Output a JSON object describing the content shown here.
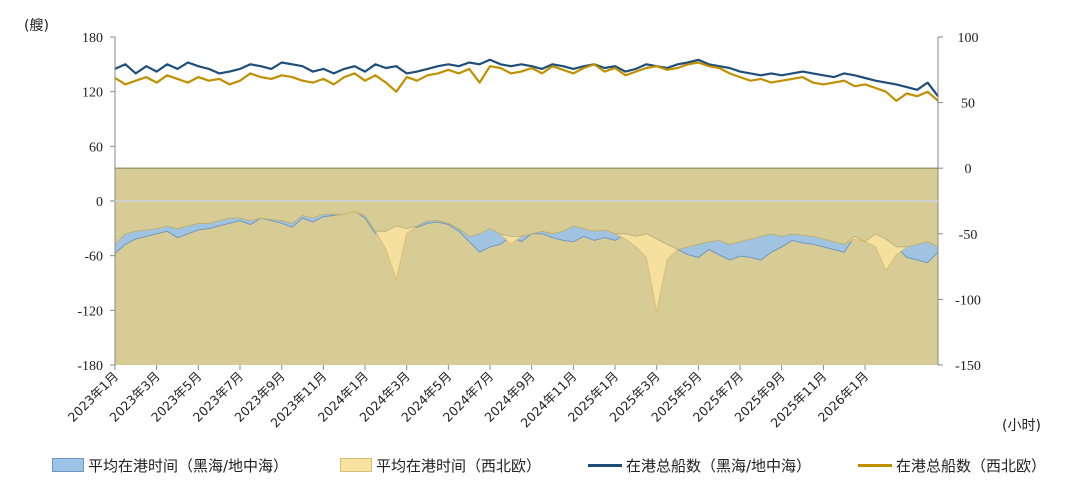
{
  "chart_data": {
    "type": "line+area",
    "left_unit": "(艘)",
    "right_unit": "(小时)",
    "left_axis": {
      "min": -180,
      "max": 180,
      "ticks": [
        "180",
        "120",
        "60",
        "0",
        "-60",
        "-120",
        "-180"
      ]
    },
    "right_axis": {
      "min": -150,
      "max": 100,
      "ticks": [
        "100",
        "50",
        "0",
        "-50",
        "-100",
        "-150"
      ]
    },
    "x_labels": [
      "2023年1月",
      "2023年3月",
      "2023年5月",
      "2023年7月",
      "2023年9月",
      "2023年11月",
      "2024年1月",
      "2024年3月",
      "2024年5月",
      "2024年7月",
      "2024年9月",
      "2024年11月",
      "2025年1月",
      "2025年3月",
      "2025年5月",
      "2025年7月",
      "2025年9月",
      "2025年11月",
      "2026年1月"
    ],
    "months_span": 39.5,
    "series": [
      {
        "name": "平均在港时间（黑海/地中海）",
        "kind": "area",
        "axis": "right",
        "color": "#9dc3e6",
        "stroke": "#6f95c2",
        "x_month": [
          0,
          0.5,
          1,
          1.5,
          2,
          2.5,
          3,
          3.5,
          4,
          4.5,
          5,
          5.5,
          6,
          6.5,
          7,
          7.5,
          8,
          8.5,
          9,
          9.5,
          10,
          10.5,
          11,
          11.5,
          12,
          12.5,
          13,
          13.5,
          14,
          14.5,
          15,
          15.5,
          16,
          16.5,
          17,
          17.5,
          18,
          18.5,
          19,
          19.5,
          20,
          20.5,
          21,
          21.5,
          22,
          22.5,
          23,
          23.5,
          24,
          24.5,
          25,
          25.5,
          26,
          26.5,
          27,
          27.5,
          28,
          28.5,
          29,
          29.5,
          30,
          30.5,
          31,
          31.5,
          32,
          32.5,
          33,
          33.5,
          34,
          34.5,
          35,
          35.5,
          36,
          36.5,
          37,
          37.5,
          38,
          38.5,
          39,
          39.5
        ],
        "values": [
          -65,
          -58,
          -54,
          -52,
          -50,
          -48,
          -53,
          -50,
          -47,
          -46,
          -44,
          -42,
          -40,
          -43,
          -38,
          -40,
          -42,
          -45,
          -38,
          -41,
          -37,
          -36,
          -35,
          -33,
          -38,
          -50,
          -48,
          -44,
          -46,
          -45,
          -42,
          -41,
          -43,
          -48,
          -56,
          -64,
          -60,
          -58,
          -52,
          -56,
          -50,
          -50,
          -53,
          -55,
          -56,
          -52,
          -55,
          -53,
          -55,
          -50,
          -52,
          -50,
          -54,
          -58,
          -62,
          -66,
          -68,
          -62,
          -66,
          -70,
          -67,
          -68,
          -70,
          -64,
          -60,
          -55,
          -57,
          -58,
          -60,
          -62,
          -64,
          -52,
          -56,
          -50,
          -54,
          -60,
          -68,
          -70,
          -72,
          -64
        ]
      },
      {
        "name": "平均在港时间（西北欧）",
        "kind": "area",
        "axis": "right",
        "color": "#f8e2a0",
        "stroke": "#d8be72",
        "x_month": [
          0,
          0.5,
          1,
          1.5,
          2,
          2.5,
          3,
          3.5,
          4,
          4.5,
          5,
          5.5,
          6,
          6.5,
          7,
          7.5,
          8,
          8.5,
          9,
          9.5,
          10,
          10.5,
          11,
          11.5,
          12,
          12.5,
          13,
          13.5,
          14,
          14.5,
          15,
          15.5,
          16,
          16.5,
          17,
          17.5,
          18,
          18.5,
          19,
          19.5,
          20,
          20.5,
          21,
          21.5,
          22,
          22.5,
          23,
          23.5,
          24,
          24.5,
          25,
          25.5,
          26,
          26.5,
          27,
          27.5,
          28,
          28.5,
          29,
          29.5,
          30,
          30.5,
          31,
          31.5,
          32,
          32.5,
          33,
          33.5,
          34,
          34.5,
          35,
          35.5,
          36,
          36.5,
          37,
          37.5,
          38,
          38.5,
          39,
          39.5
        ],
        "values": [
          -58,
          -50,
          -48,
          -47,
          -46,
          -44,
          -46,
          -44,
          -42,
          -42,
          -40,
          -38,
          -38,
          -40,
          -38,
          -39,
          -40,
          -42,
          -36,
          -38,
          -35,
          -35,
          -36,
          -34,
          -36,
          -48,
          -62,
          -85,
          -50,
          -44,
          -40,
          -40,
          -42,
          -46,
          -52,
          -50,
          -46,
          -50,
          -58,
          -52,
          -50,
          -48,
          -50,
          -48,
          -44,
          -46,
          -48,
          -47,
          -50,
          -54,
          -60,
          -68,
          -110,
          -70,
          -62,
          -60,
          -58,
          -56,
          -55,
          -58,
          -56,
          -54,
          -52,
          -50,
          -52,
          -50,
          -51,
          -52,
          -54,
          -56,
          -58,
          -54,
          -56,
          -60,
          -78,
          -66,
          -60,
          -58,
          -56,
          -60
        ]
      },
      {
        "name": "在港总船数（黑海/地中海）",
        "kind": "line",
        "axis": "left",
        "color": "#1f4e79",
        "x_month": [
          0,
          0.5,
          1,
          1.5,
          2,
          2.5,
          3,
          3.5,
          4,
          4.5,
          5,
          5.5,
          6,
          6.5,
          7,
          7.5,
          8,
          8.5,
          9,
          9.5,
          10,
          10.5,
          11,
          11.5,
          12,
          12.5,
          13,
          13.5,
          14,
          14.5,
          15,
          15.5,
          16,
          16.5,
          17,
          17.5,
          18,
          18.5,
          19,
          19.5,
          20,
          20.5,
          21,
          21.5,
          22,
          22.5,
          23,
          23.5,
          24,
          24.5,
          25,
          25.5,
          26,
          26.5,
          27,
          27.5,
          28,
          28.5,
          29,
          29.5,
          30,
          30.5,
          31,
          31.5,
          32,
          32.5,
          33,
          33.5,
          34,
          34.5,
          35,
          35.5,
          36,
          36.5,
          37,
          37.5,
          38,
          38.5,
          39,
          39.5
        ],
        "values": [
          145,
          150,
          140,
          148,
          142,
          150,
          145,
          152,
          148,
          145,
          140,
          142,
          145,
          150,
          148,
          145,
          152,
          150,
          148,
          142,
          145,
          140,
          145,
          148,
          142,
          150,
          146,
          148,
          140,
          142,
          145,
          148,
          150,
          148,
          152,
          150,
          155,
          150,
          148,
          150,
          148,
          145,
          150,
          148,
          145,
          148,
          150,
          146,
          148,
          142,
          145,
          150,
          148,
          146,
          150,
          152,
          155,
          150,
          148,
          146,
          142,
          140,
          138,
          140,
          138,
          140,
          142,
          140,
          138,
          136,
          140,
          138,
          135,
          132,
          130,
          128,
          125,
          122,
          130,
          115
        ]
      },
      {
        "name": "在港总船数（西北欧）",
        "kind": "line",
        "axis": "left",
        "color": "#c09000",
        "x_month": [
          0,
          0.5,
          1,
          1.5,
          2,
          2.5,
          3,
          3.5,
          4,
          4.5,
          5,
          5.5,
          6,
          6.5,
          7,
          7.5,
          8,
          8.5,
          9,
          9.5,
          10,
          10.5,
          11,
          11.5,
          12,
          12.5,
          13,
          13.5,
          14,
          14.5,
          15,
          15.5,
          16,
          16.5,
          17,
          17.5,
          18,
          18.5,
          19,
          19.5,
          20,
          20.5,
          21,
          21.5,
          22,
          22.5,
          23,
          23.5,
          24,
          24.5,
          25,
          25.5,
          26,
          26.5,
          27,
          27.5,
          28,
          28.5,
          29,
          29.5,
          30,
          30.5,
          31,
          31.5,
          32,
          32.5,
          33,
          33.5,
          34,
          34.5,
          35,
          35.5,
          36,
          36.5,
          37,
          37.5,
          38,
          38.5,
          39,
          39.5
        ],
        "values": [
          135,
          128,
          132,
          136,
          130,
          138,
          134,
          130,
          136,
          132,
          134,
          128,
          132,
          140,
          136,
          134,
          138,
          136,
          132,
          130,
          134,
          128,
          136,
          140,
          132,
          138,
          130,
          120,
          136,
          132,
          138,
          140,
          144,
          140,
          145,
          130,
          148,
          146,
          140,
          142,
          146,
          140,
          148,
          144,
          140,
          146,
          150,
          142,
          146,
          138,
          142,
          146,
          148,
          144,
          146,
          150,
          152,
          148,
          146,
          140,
          136,
          132,
          134,
          130,
          132,
          134,
          136,
          130,
          128,
          130,
          132,
          126,
          128,
          124,
          120,
          110,
          118,
          115,
          120,
          110
        ]
      }
    ],
    "legend": [
      "平均在港时间（黑海/地中海）",
      "平均在港时间（西北欧）",
      "在港总船数（黑海/地中海）",
      "在港总船数（西北欧）"
    ]
  }
}
